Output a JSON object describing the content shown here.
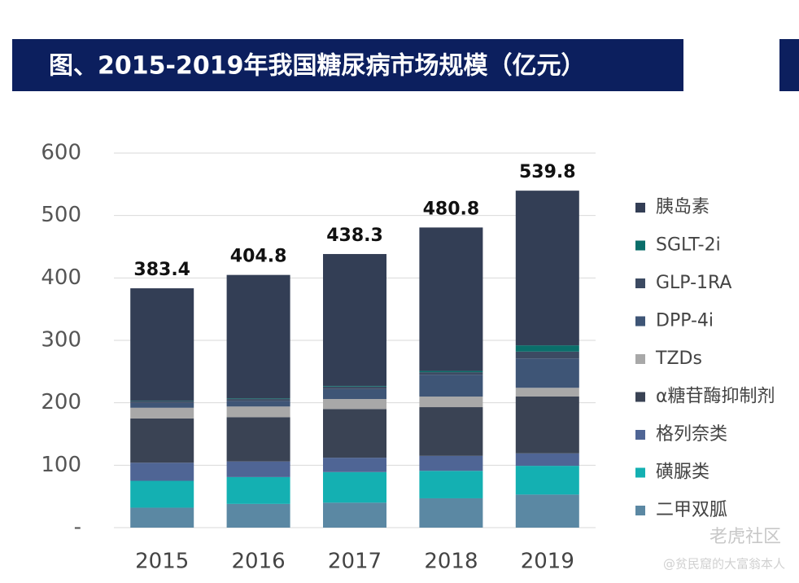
{
  "chart_data": {
    "type": "stacked_bar",
    "title": "图、2015-2019年我国糖尿病市场规模（亿元）",
    "categories": [
      "2015",
      "2016",
      "2017",
      "2018",
      "2019"
    ],
    "totals": [
      383.4,
      404.8,
      438.3,
      480.8,
      539.8
    ],
    "series": [
      {
        "name": "二甲双胍",
        "color": "#5b88a3",
        "values": [
          32,
          38,
          40,
          47,
          53
        ]
      },
      {
        "name": "磺脲类",
        "color": "#14b0b2",
        "values": [
          43,
          43,
          49,
          44,
          46
        ]
      },
      {
        "name": "格列奈类",
        "color": "#4f6595",
        "values": [
          29,
          25,
          23,
          24,
          20
        ]
      },
      {
        "name": "α糖苷酶抑制剂",
        "color": "#3a4354",
        "values": [
          71,
          71,
          78,
          78,
          91
        ]
      },
      {
        "name": "TZDs",
        "color": "#a8a8a8",
        "values": [
          17,
          17,
          16,
          17,
          14
        ]
      },
      {
        "name": "DPP-4i",
        "color": "#3e5576",
        "values": [
          8,
          9,
          16,
          35,
          47
        ]
      },
      {
        "name": "GLP-1RA",
        "color": "#3c4a62",
        "values": [
          3,
          3,
          4,
          4,
          11
        ]
      },
      {
        "name": "SGLT-2i",
        "color": "#0a6e6a",
        "values": [
          0.5,
          1,
          1,
          2,
          10
        ]
      },
      {
        "name": "胰岛素",
        "color": "#333e55",
        "values": [
          179.9,
          197.8,
          211.3,
          229.8,
          247.8
        ]
      }
    ],
    "ylim": [
      0,
      600
    ],
    "yticks": [
      {
        "value": 0,
        "label": "-"
      },
      100,
      200,
      300,
      400,
      500,
      600
    ],
    "grid": true,
    "legend": "right",
    "watermarks": [
      "老虎社区",
      "@贫民窟的大富翁本人"
    ]
  }
}
